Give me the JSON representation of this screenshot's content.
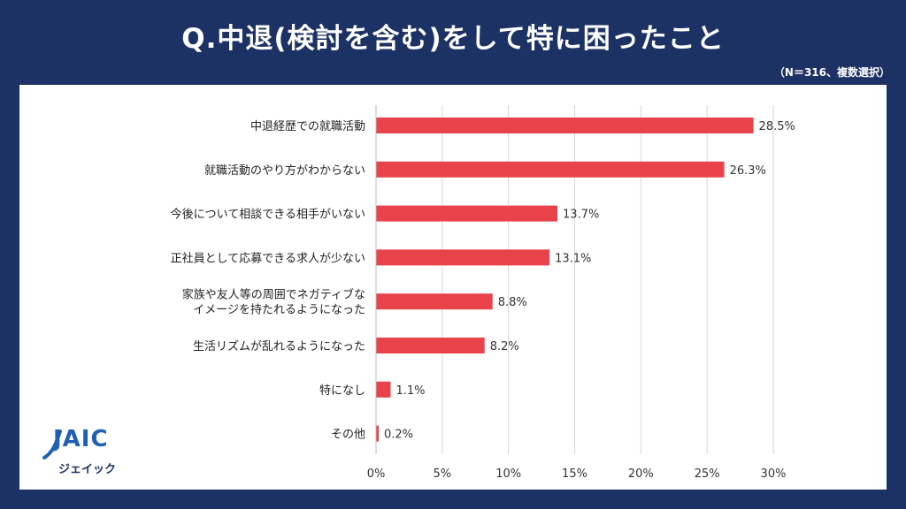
{
  "header": {
    "title": "Q.中退(検討を含む)をして特に困ったこと",
    "note": "（N＝316、複数選択）"
  },
  "logo": {
    "wordmark": "JAIC",
    "subtitle": "ジェイック"
  },
  "colors": {
    "background": "#1d3264",
    "bar": "#e8434a",
    "grid": "#d6d6d6"
  },
  "chart_data": {
    "type": "bar",
    "orientation": "horizontal",
    "categories": [
      [
        "中退経歴での就職活動"
      ],
      [
        "就職活動のやり方がわからない"
      ],
      [
        "今後について相談できる相手がいない"
      ],
      [
        "正社員として応募できる求人が少ない"
      ],
      [
        "家族や友人等の周囲でネガティブな",
        "イメージを持たれるようになった"
      ],
      [
        "生活リズムが乱れるようになった"
      ],
      [
        "特になし"
      ],
      [
        "その他"
      ]
    ],
    "values": [
      28.5,
      26.3,
      13.7,
      13.1,
      8.8,
      8.2,
      1.1,
      0.2
    ],
    "value_labels": [
      "28.5%",
      "26.3%",
      "13.7%",
      "13.1%",
      "8.8%",
      "8.2%",
      "1.1%",
      "0.2%"
    ],
    "xlim": [
      0,
      30
    ],
    "ticks": [
      0,
      5,
      10,
      15,
      20,
      25,
      30
    ],
    "tick_labels": [
      "0%",
      "5%",
      "10%",
      "15%",
      "20%",
      "25%",
      "30%"
    ],
    "grid": true
  }
}
